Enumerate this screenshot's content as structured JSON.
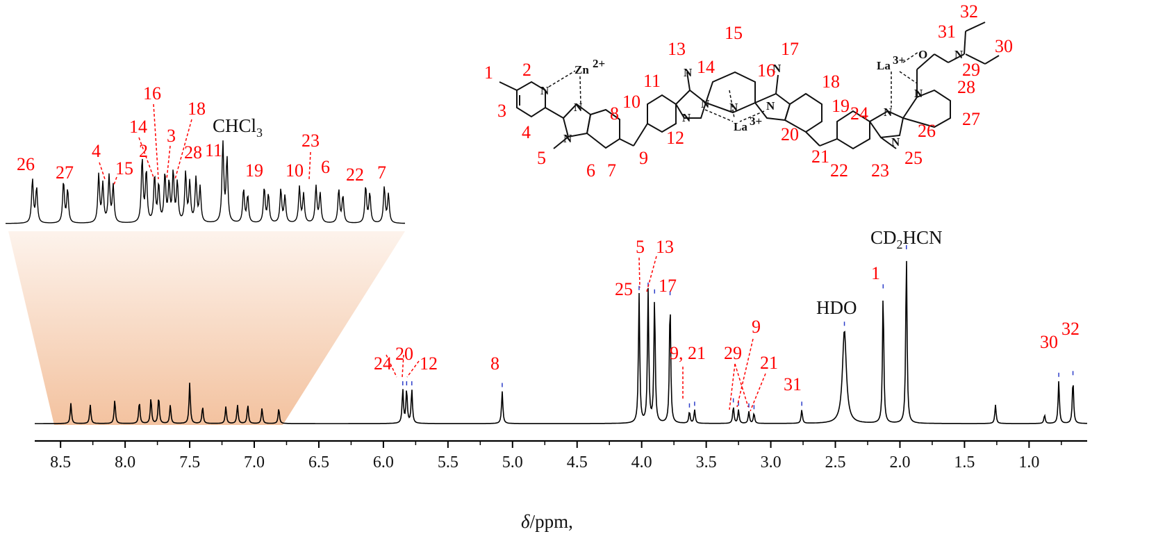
{
  "chart_data": {
    "type": "line",
    "title": "",
    "xlabel_symbol": "δ",
    "xlabel_rest": "/ppm,",
    "xlim": [
      8.7,
      0.55
    ],
    "x_direction": "reversed",
    "grid": false,
    "x_ticks": [
      8.5,
      8.0,
      7.5,
      7.0,
      6.5,
      6.0,
      5.5,
      5.0,
      4.5,
      4.0,
      3.5,
      3.0,
      2.5,
      2.0,
      1.5,
      1.0
    ],
    "x_tick_labels": [
      "8.5",
      "8.0",
      "7.5",
      "7.0",
      "6.5",
      "6.0",
      "5.5",
      "5.0",
      "4.5",
      "4.0",
      "3.5",
      "3.0",
      "2.5",
      "2.0",
      "1.5",
      "1.0"
    ],
    "series": [
      {
        "peaks": [
          {
            "ppm": 8.42,
            "height": 0.12
          },
          {
            "ppm": 8.27,
            "height": 0.11
          },
          {
            "ppm": 8.08,
            "height": 0.14
          },
          {
            "ppm": 7.89,
            "height": 0.13
          },
          {
            "ppm": 7.8,
            "height": 0.15
          },
          {
            "ppm": 7.74,
            "height": 0.16
          },
          {
            "ppm": 7.65,
            "height": 0.11
          },
          {
            "ppm": 7.5,
            "height": 0.24
          },
          {
            "ppm": 7.4,
            "height": 0.1
          },
          {
            "ppm": 7.22,
            "height": 0.1
          },
          {
            "ppm": 7.13,
            "height": 0.11
          },
          {
            "ppm": 7.05,
            "height": 0.11
          },
          {
            "ppm": 6.94,
            "height": 0.09
          },
          {
            "ppm": 6.81,
            "height": 0.09
          },
          {
            "ppm": 5.85,
            "height": 0.2
          },
          {
            "ppm": 5.82,
            "height": 0.2
          },
          {
            "ppm": 5.78,
            "height": 0.2
          },
          {
            "ppm": 5.08,
            "height": 0.19
          },
          {
            "ppm": 4.02,
            "height": 0.76
          },
          {
            "ppm": 3.95,
            "height": 0.78
          },
          {
            "ppm": 3.9,
            "height": 0.74
          },
          {
            "ppm": 3.78,
            "height": 0.73
          },
          {
            "ppm": 3.63,
            "height": 0.07
          },
          {
            "ppm": 3.59,
            "height": 0.08
          },
          {
            "ppm": 3.29,
            "height": 0.1
          },
          {
            "ppm": 3.25,
            "height": 0.08
          },
          {
            "ppm": 3.17,
            "height": 0.07
          },
          {
            "ppm": 3.13,
            "height": 0.06
          },
          {
            "ppm": 2.76,
            "height": 0.08
          },
          {
            "ppm": 2.43,
            "height": 0.55
          },
          {
            "ppm": 2.13,
            "height": 0.77
          },
          {
            "ppm": 1.95,
            "height": 1.0
          },
          {
            "ppm": 1.26,
            "height": 0.11
          },
          {
            "ppm": 0.88,
            "height": 0.05
          },
          {
            "ppm": 0.77,
            "height": 0.25
          },
          {
            "ppm": 0.66,
            "height": 0.26
          }
        ]
      }
    ],
    "inset": {
      "peaks": [
        {
          "ppm": 8.42,
          "height": 0.55
        },
        {
          "ppm": 8.27,
          "height": 0.52
        },
        {
          "ppm": 8.1,
          "height": 0.6
        },
        {
          "ppm": 8.05,
          "height": 0.58
        },
        {
          "ppm": 7.89,
          "height": 0.8
        },
        {
          "ppm": 7.83,
          "height": 0.58
        },
        {
          "ppm": 7.78,
          "height": 0.6
        },
        {
          "ppm": 7.74,
          "height": 0.62
        },
        {
          "ppm": 7.68,
          "height": 0.62
        },
        {
          "ppm": 7.63,
          "height": 0.55
        },
        {
          "ppm": 7.5,
          "height": 1.0
        },
        {
          "ppm": 7.4,
          "height": 0.42
        },
        {
          "ppm": 7.3,
          "height": 0.44
        },
        {
          "ppm": 7.22,
          "height": 0.42
        },
        {
          "ppm": 7.13,
          "height": 0.45
        },
        {
          "ppm": 7.05,
          "height": 0.46
        },
        {
          "ppm": 6.94,
          "height": 0.42
        },
        {
          "ppm": 6.81,
          "height": 0.46
        },
        {
          "ppm": 6.72,
          "height": 0.45
        }
      ],
      "solvent_label": "CHCl",
      "solvent_sub": "3"
    },
    "annotations": {
      "solvent_labels": [
        {
          "text": "HDO"
        },
        {
          "text_main": "CD",
          "text_sub": "2",
          "text_tail": "HCN"
        }
      ],
      "peak_labels": [
        "24",
        "20",
        "12",
        "8",
        "25",
        "5",
        "13",
        "17",
        "9, 21",
        "29",
        "9",
        "21",
        "31",
        "1",
        "30",
        "32"
      ],
      "inset_labels": [
        "26",
        "27",
        "4",
        "15",
        "14",
        "16",
        "2",
        "3",
        "18",
        "28",
        "11",
        "19",
        "10",
        "23",
        "6",
        "22",
        "7"
      ],
      "structure_numbers": [
        "1",
        "2",
        "3",
        "4",
        "5",
        "6",
        "7",
        "8",
        "9",
        "10",
        "11",
        "12",
        "13",
        "14",
        "15",
        "16",
        "17",
        "18",
        "19",
        "20",
        "21",
        "22",
        "23",
        "24",
        "25",
        "26",
        "27",
        "28",
        "29",
        "30",
        "31",
        "32"
      ],
      "ions": {
        "zn": "Zn",
        "zn_charge": "2+",
        "la": "La",
        "la_charge": "3+"
      }
    }
  }
}
